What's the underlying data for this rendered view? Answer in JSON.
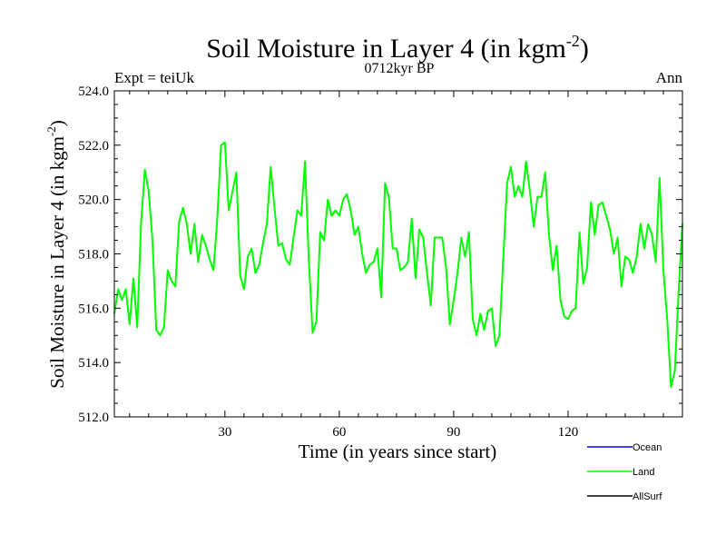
{
  "chart_data": {
    "type": "line",
    "title": "Soil Moisture in Layer 4 (in kgm",
    "title_sup": "-2",
    "title_close": ")",
    "subtitle": "0712kyr BP",
    "left_label": "Expt = teiUk",
    "right_label": "Ann",
    "xlabel": "Time (in years since start)",
    "ylabel": "Soil Moisture in Layer 4 (in kgm",
    "ylabel_sup": "-2",
    "ylabel_close": ")",
    "xlim": [
      1,
      150
    ],
    "ylim": [
      512,
      524
    ],
    "x_ticks": [
      30,
      60,
      90,
      120
    ],
    "x_tick_labels": [
      "30",
      "60",
      "90",
      "120"
    ],
    "y_ticks": [
      512,
      514,
      516,
      518,
      520,
      522,
      524
    ],
    "y_tick_labels": [
      "512.0",
      "514.0",
      "516.0",
      "518.0",
      "520.0",
      "522.0",
      "524.0"
    ],
    "legend": [
      {
        "name": "Ocean",
        "color": "#0000ff"
      },
      {
        "name": "Land",
        "color": "#00ff00"
      },
      {
        "name": "AllSurf",
        "color": "#000000"
      }
    ],
    "series": [
      {
        "name": "Land",
        "color": "#00ff00",
        "x_start": 1,
        "values": [
          515.8,
          516.7,
          516.3,
          516.7,
          515.4,
          517.1,
          515.3,
          519.1,
          521.1,
          520.3,
          518.5,
          515.2,
          515.0,
          515.3,
          517.4,
          517.0,
          516.8,
          519.2,
          519.7,
          519.1,
          518.0,
          519.1,
          517.7,
          518.7,
          518.3,
          517.8,
          517.4,
          519.3,
          522.0,
          522.1,
          519.6,
          520.3,
          521.0,
          517.2,
          516.7,
          517.9,
          518.2,
          517.3,
          517.6,
          518.4,
          519.1,
          521.2,
          519.7,
          518.3,
          518.4,
          517.8,
          517.6,
          518.6,
          519.6,
          519.4,
          521.4,
          517.8,
          515.1,
          515.5,
          518.8,
          518.5,
          520.0,
          519.4,
          519.6,
          519.4,
          520.0,
          520.2,
          519.6,
          518.7,
          519.0,
          518.0,
          517.3,
          517.6,
          517.7,
          518.2,
          516.4,
          520.6,
          520.1,
          518.2,
          518.2,
          517.4,
          517.5,
          517.7,
          519.3,
          517.1,
          518.9,
          518.6,
          517.3,
          516.1,
          518.6,
          518.6,
          518.6,
          517.5,
          515.4,
          516.3,
          517.3,
          518.6,
          517.9,
          518.8,
          515.6,
          515.0,
          515.8,
          515.2,
          515.9,
          516.0,
          514.6,
          515.0,
          517.8,
          520.6,
          521.2,
          520.1,
          520.5,
          520.1,
          521.4,
          520.3,
          519.0,
          520.1,
          520.1,
          521.0,
          518.7,
          517.4,
          518.3,
          516.3,
          515.7,
          515.6,
          515.9,
          516.0,
          518.8,
          516.9,
          517.5,
          519.9,
          518.7,
          519.8,
          519.9,
          519.4,
          518.9,
          518.0,
          518.6,
          516.8,
          517.9,
          517.8,
          517.3,
          517.9,
          519.1,
          518.2,
          519.1,
          518.7,
          517.7,
          520.8,
          517.4,
          515.6,
          513.1,
          513.7,
          516.6,
          519.1
        ]
      }
    ]
  }
}
